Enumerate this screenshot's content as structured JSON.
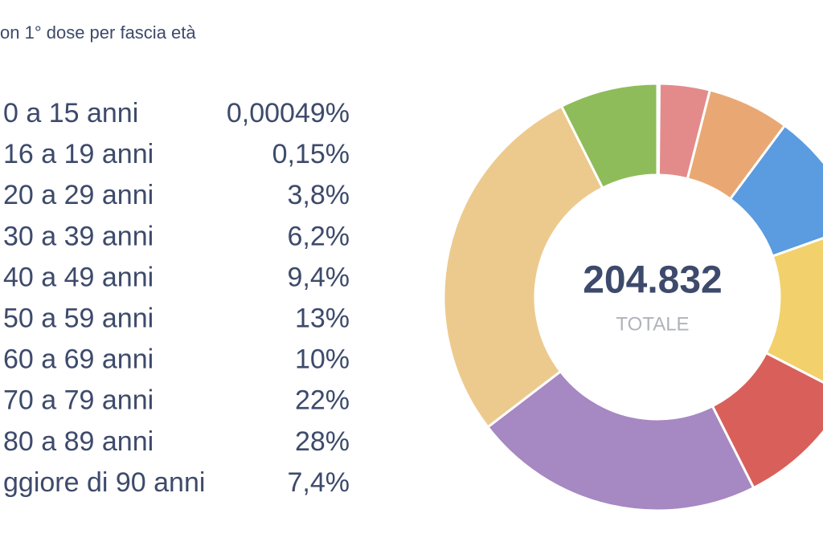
{
  "chart_data": {
    "type": "pie",
    "title": "on 1° dose per fascia età",
    "categories": [
      "0 a 15 anni",
      "16 a 19 anni",
      "20 a 29 anni",
      "30 a 39 anni",
      "40 a 49 anni",
      "50 a 59 anni",
      "60 a 69 anni",
      "70 a 79 anni",
      "80 a 89 anni",
      "ggiore di 90 anni"
    ],
    "values": [
      0.00049,
      0.15,
      3.8,
      6.2,
      9.4,
      13,
      10,
      22,
      28,
      7.4
    ],
    "value_labels": [
      "0,00049%",
      "0,15%",
      "3,8%",
      "6,2%",
      "9,4%",
      "13%",
      "10%",
      "22%",
      "28%",
      "7,4%"
    ],
    "colors": [
      "#3c4a78",
      "#7f8fb0",
      "#e38b8b",
      "#e9a873",
      "#5b9be0",
      "#f2d06b",
      "#d9605a",
      "#a688c2",
      "#ecca8e",
      "#8fbc5a"
    ],
    "center_value": "204.832",
    "center_label": "TOTALE"
  }
}
